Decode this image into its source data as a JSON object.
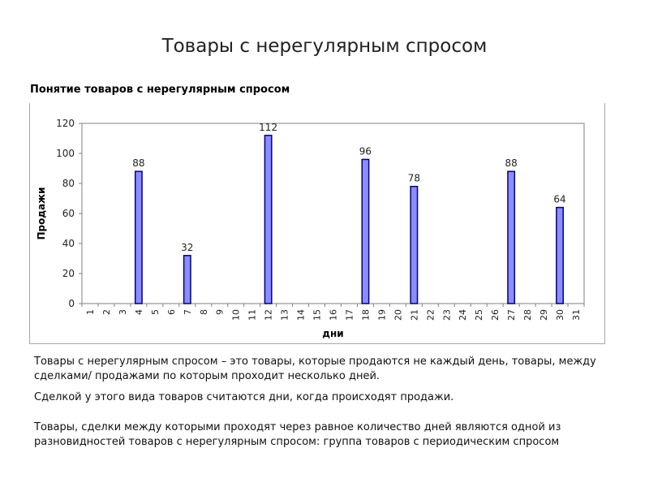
{
  "slide": {
    "title": "Товары с нерегулярным спросом",
    "subtitle": "Понятие товаров с нерегулярным спросом"
  },
  "text": {
    "paragraph1": "Товары с нерегулярным спросом – это товары, которые продаются не каждый день, товары, между сделками/ продажами по которым проходит несколько дней.",
    "paragraph2": "Сделкой у этого вида товаров считаются дни, когда происходят продажи.",
    "paragraph3": "Товары, сделки между которыми проходят через равное количество дней являются одной из разновидностей товаров с нерегулярным спросом: группа товаров с периодическим спросом"
  },
  "chart_data": {
    "type": "bar",
    "title": "",
    "xlabel": "дни",
    "ylabel": "Продажи",
    "categories": [
      "1",
      "2",
      "3",
      "4",
      "5",
      "6",
      "7",
      "8",
      "9",
      "10",
      "11",
      "12",
      "13",
      "14",
      "15",
      "16",
      "17",
      "18",
      "19",
      "20",
      "21",
      "22",
      "23",
      "24",
      "25",
      "26",
      "27",
      "28",
      "29",
      "30",
      "31"
    ],
    "values": [
      0,
      0,
      0,
      88,
      0,
      0,
      32,
      0,
      0,
      0,
      0,
      112,
      0,
      0,
      0,
      0,
      0,
      96,
      0,
      0,
      78,
      0,
      0,
      0,
      0,
      0,
      88,
      0,
      0,
      64,
      0
    ],
    "ylim": [
      0,
      120
    ],
    "yticks": [
      0,
      20,
      40,
      60,
      80,
      100,
      120
    ],
    "grid": false,
    "legend": "none",
    "bar_color": "#8c8cff",
    "bar_edge_color": "#000080"
  }
}
